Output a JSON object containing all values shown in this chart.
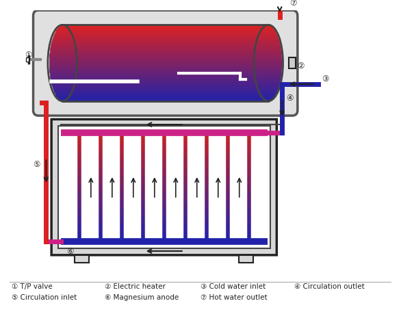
{
  "bg_color": "#ffffff",
  "hot_color": "#dd2020",
  "cold_color": "#2222aa",
  "mid_color": "#cc2288",
  "frame_color": "#222222",
  "legend_items_row1": [
    "① T/P valve",
    "② Electric heater",
    "③ Cold water inlet",
    "④ Circulation outlet"
  ],
  "legend_items_row2": [
    "⑤ Circulation inlet",
    "⑥ Magnesium anode",
    "⑦ Hot water outlet"
  ]
}
